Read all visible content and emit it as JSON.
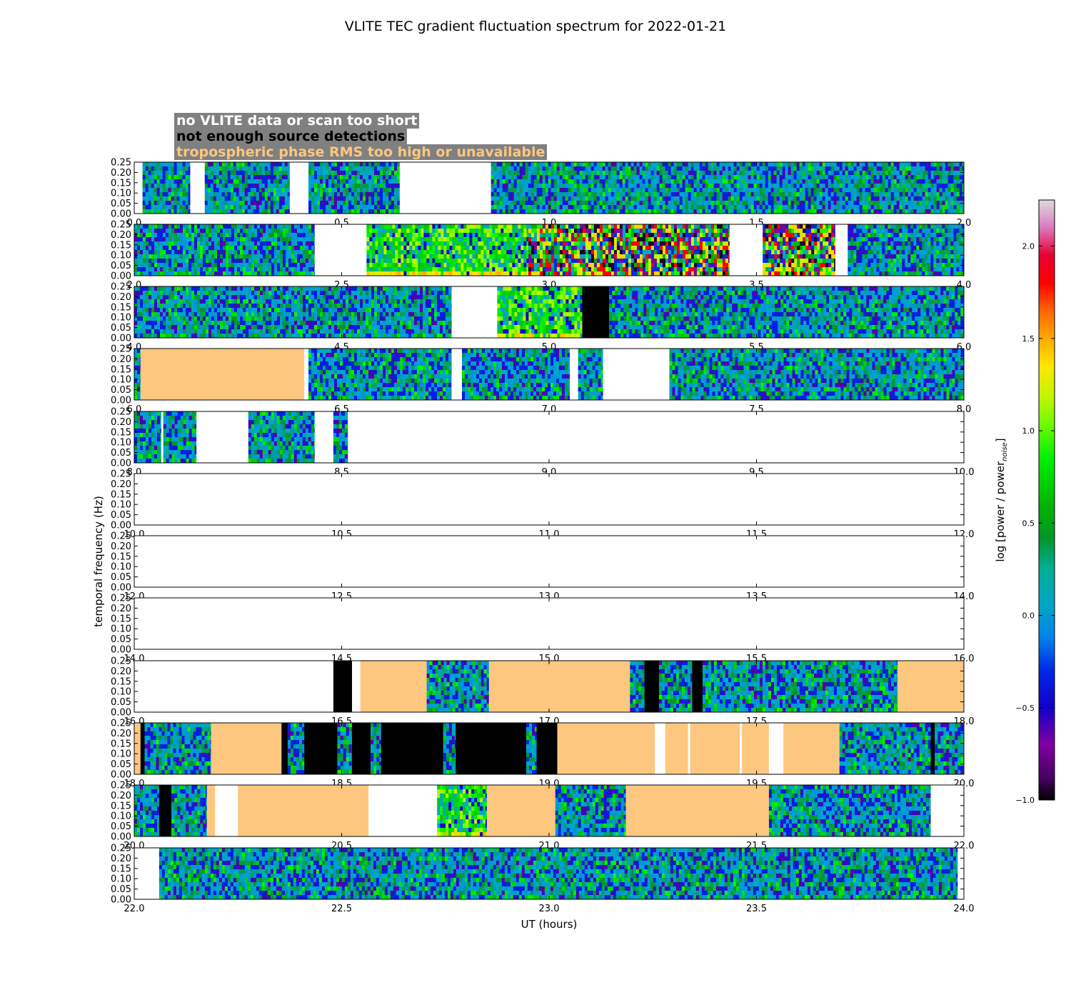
{
  "chart_data": {
    "type": "heatmap",
    "title": "VLITE TEC gradient fluctuation spectrum for 2022-01-21",
    "xlabel": "UT (hours)",
    "ylabel": "temporal frequency (Hz)",
    "colorbar_label": "log [power / power",
    "colorbar_label_sub": "noise",
    "colorbar_label_close": "]",
    "colorbar_range": [
      -1.0,
      2.25
    ],
    "colorbar_ticks": [
      "−1.0",
      "−0.5",
      "0.0",
      "0.5",
      "1.0",
      "1.5",
      "2.0"
    ],
    "colorbar_tick_values": [
      -1.0,
      -0.5,
      0.0,
      0.5,
      1.0,
      1.5,
      2.0
    ],
    "ylim": [
      0,
      0.25
    ],
    "y_ticks": [
      "0.00",
      "0.05",
      "0.10",
      "0.15",
      "0.20",
      "0.25"
    ],
    "legend": [
      {
        "label": "no VLITE data or scan too short",
        "color": "#ffffff"
      },
      {
        "label": "not enough source detections",
        "color": "#000000"
      },
      {
        "label": "tropospheric phase RMS too high or unavailable",
        "color": "#fec77f"
      }
    ],
    "panels": [
      {
        "xlim": [
          0.0,
          2.0
        ],
        "x_ticks": [
          "0.0",
          "0.5",
          "1.0",
          "1.5",
          "2.0"
        ],
        "segments": [
          {
            "start": 0.0,
            "end": 0.02,
            "state": "none"
          },
          {
            "start": 0.02,
            "end": 0.135,
            "state": "data"
          },
          {
            "start": 0.135,
            "end": 0.17,
            "state": "none"
          },
          {
            "start": 0.17,
            "end": 0.375,
            "state": "data"
          },
          {
            "start": 0.375,
            "end": 0.42,
            "state": "none"
          },
          {
            "start": 0.42,
            "end": 0.64,
            "state": "data"
          },
          {
            "start": 0.64,
            "end": 0.86,
            "state": "none"
          },
          {
            "start": 0.86,
            "end": 2.0,
            "state": "data"
          }
        ]
      },
      {
        "xlim": [
          2.0,
          4.0
        ],
        "x_ticks": [
          "2.0",
          "2.5",
          "3.0",
          "3.5",
          "4.0"
        ],
        "segments": [
          {
            "start": 2.0,
            "end": 2.435,
            "state": "data"
          },
          {
            "start": 2.435,
            "end": 2.56,
            "state": "none"
          },
          {
            "start": 2.56,
            "end": 2.95,
            "state": "active"
          },
          {
            "start": 2.95,
            "end": 3.435,
            "state": "storm"
          },
          {
            "start": 3.435,
            "end": 3.515,
            "state": "none"
          },
          {
            "start": 3.515,
            "end": 3.69,
            "state": "storm"
          },
          {
            "start": 3.69,
            "end": 3.72,
            "state": "none"
          },
          {
            "start": 3.72,
            "end": 4.0,
            "state": "data"
          }
        ]
      },
      {
        "xlim": [
          4.0,
          6.0
        ],
        "x_ticks": [
          "4.0",
          "4.5",
          "5.0",
          "5.5",
          "6.0"
        ],
        "segments": [
          {
            "start": 4.0,
            "end": 4.765,
            "state": "data"
          },
          {
            "start": 4.765,
            "end": 4.875,
            "state": "none"
          },
          {
            "start": 4.875,
            "end": 5.08,
            "state": "active"
          },
          {
            "start": 5.08,
            "end": 5.145,
            "state": "detect"
          },
          {
            "start": 5.145,
            "end": 6.0,
            "state": "data"
          }
        ]
      },
      {
        "xlim": [
          6.0,
          8.0
        ],
        "x_ticks": [
          "6.0",
          "6.5",
          "7.0",
          "7.5",
          "8.0"
        ],
        "segments": [
          {
            "start": 6.0,
            "end": 6.015,
            "state": "data"
          },
          {
            "start": 6.015,
            "end": 6.41,
            "state": "tropo"
          },
          {
            "start": 6.41,
            "end": 6.42,
            "state": "none"
          },
          {
            "start": 6.42,
            "end": 6.765,
            "state": "data"
          },
          {
            "start": 6.765,
            "end": 6.79,
            "state": "none"
          },
          {
            "start": 6.79,
            "end": 7.05,
            "state": "data"
          },
          {
            "start": 7.05,
            "end": 7.07,
            "state": "none"
          },
          {
            "start": 7.07,
            "end": 7.13,
            "state": "data"
          },
          {
            "start": 7.13,
            "end": 7.29,
            "state": "none"
          },
          {
            "start": 7.29,
            "end": 8.0,
            "state": "data"
          }
        ]
      },
      {
        "xlim": [
          8.0,
          10.0
        ],
        "x_ticks": [
          "8.0",
          "8.5",
          "9.0",
          "9.5",
          "10.0"
        ],
        "segments": [
          {
            "start": 8.0,
            "end": 8.065,
            "state": "data"
          },
          {
            "start": 8.065,
            "end": 8.07,
            "state": "none"
          },
          {
            "start": 8.07,
            "end": 8.15,
            "state": "data"
          },
          {
            "start": 8.15,
            "end": 8.275,
            "state": "none"
          },
          {
            "start": 8.275,
            "end": 8.435,
            "state": "data"
          },
          {
            "start": 8.435,
            "end": 8.48,
            "state": "none"
          },
          {
            "start": 8.48,
            "end": 8.515,
            "state": "data"
          },
          {
            "start": 8.515,
            "end": 10.0,
            "state": "none"
          }
        ]
      },
      {
        "xlim": [
          10.0,
          12.0
        ],
        "x_ticks": [
          "10.0",
          "10.5",
          "11.0",
          "11.5",
          "12.0"
        ],
        "segments": [
          {
            "start": 10.0,
            "end": 12.0,
            "state": "none"
          }
        ]
      },
      {
        "xlim": [
          12.0,
          14.0
        ],
        "x_ticks": [
          "12.0",
          "12.5",
          "13.0",
          "13.5",
          "14.0"
        ],
        "segments": [
          {
            "start": 12.0,
            "end": 14.0,
            "state": "none"
          }
        ]
      },
      {
        "xlim": [
          14.0,
          16.0
        ],
        "x_ticks": [
          "14.0",
          "14.5",
          "15.0",
          "15.5",
          "16.0"
        ],
        "segments": [
          {
            "start": 14.0,
            "end": 16.0,
            "state": "none"
          }
        ]
      },
      {
        "xlim": [
          16.0,
          18.0
        ],
        "x_ticks": [
          "16.0",
          "16.5",
          "17.0",
          "17.5",
          "18.0"
        ],
        "segments": [
          {
            "start": 16.0,
            "end": 16.48,
            "state": "none"
          },
          {
            "start": 16.48,
            "end": 16.525,
            "state": "detect"
          },
          {
            "start": 16.525,
            "end": 16.545,
            "state": "none"
          },
          {
            "start": 16.545,
            "end": 16.705,
            "state": "tropo"
          },
          {
            "start": 16.705,
            "end": 16.855,
            "state": "data"
          },
          {
            "start": 16.855,
            "end": 17.195,
            "state": "tropo"
          },
          {
            "start": 17.195,
            "end": 17.23,
            "state": "data"
          },
          {
            "start": 17.23,
            "end": 17.265,
            "state": "detect"
          },
          {
            "start": 17.265,
            "end": 17.345,
            "state": "data"
          },
          {
            "start": 17.345,
            "end": 17.37,
            "state": "detect"
          },
          {
            "start": 17.37,
            "end": 17.84,
            "state": "data"
          },
          {
            "start": 17.84,
            "end": 18.0,
            "state": "tropo"
          }
        ]
      },
      {
        "xlim": [
          18.0,
          20.0
        ],
        "x_ticks": [
          "18.0",
          "18.5",
          "19.0",
          "19.5",
          "20.0"
        ],
        "segments": [
          {
            "start": 18.0,
            "end": 18.015,
            "state": "tropo"
          },
          {
            "start": 18.015,
            "end": 18.025,
            "state": "detect"
          },
          {
            "start": 18.025,
            "end": 18.185,
            "state": "data"
          },
          {
            "start": 18.185,
            "end": 18.355,
            "state": "tropo"
          },
          {
            "start": 18.355,
            "end": 18.37,
            "state": "detect"
          },
          {
            "start": 18.37,
            "end": 18.41,
            "state": "data"
          },
          {
            "start": 18.41,
            "end": 18.49,
            "state": "detect"
          },
          {
            "start": 18.49,
            "end": 18.525,
            "state": "data"
          },
          {
            "start": 18.525,
            "end": 18.57,
            "state": "detect"
          },
          {
            "start": 18.57,
            "end": 18.595,
            "state": "data"
          },
          {
            "start": 18.595,
            "end": 18.745,
            "state": "detect"
          },
          {
            "start": 18.745,
            "end": 18.775,
            "state": "data"
          },
          {
            "start": 18.775,
            "end": 18.945,
            "state": "detect"
          },
          {
            "start": 18.945,
            "end": 18.97,
            "state": "data"
          },
          {
            "start": 18.97,
            "end": 19.02,
            "state": "detect"
          },
          {
            "start": 19.02,
            "end": 19.255,
            "state": "tropo"
          },
          {
            "start": 19.255,
            "end": 19.28,
            "state": "none"
          },
          {
            "start": 19.28,
            "end": 19.335,
            "state": "tropo"
          },
          {
            "start": 19.335,
            "end": 19.34,
            "state": "none"
          },
          {
            "start": 19.34,
            "end": 19.46,
            "state": "tropo"
          },
          {
            "start": 19.46,
            "end": 19.465,
            "state": "none"
          },
          {
            "start": 19.465,
            "end": 19.53,
            "state": "tropo"
          },
          {
            "start": 19.53,
            "end": 19.565,
            "state": "none"
          },
          {
            "start": 19.565,
            "end": 19.7,
            "state": "tropo"
          },
          {
            "start": 19.7,
            "end": 19.92,
            "state": "data"
          },
          {
            "start": 19.92,
            "end": 19.93,
            "state": "detect"
          },
          {
            "start": 19.93,
            "end": 20.0,
            "state": "data"
          }
        ]
      },
      {
        "xlim": [
          20.0,
          22.0
        ],
        "x_ticks": [
          "20.0",
          "20.5",
          "21.0",
          "21.5",
          "22.0"
        ],
        "segments": [
          {
            "start": 20.0,
            "end": 20.06,
            "state": "data"
          },
          {
            "start": 20.06,
            "end": 20.09,
            "state": "detect"
          },
          {
            "start": 20.09,
            "end": 20.175,
            "state": "data"
          },
          {
            "start": 20.175,
            "end": 20.195,
            "state": "tropo"
          },
          {
            "start": 20.195,
            "end": 20.25,
            "state": "none"
          },
          {
            "start": 20.25,
            "end": 20.565,
            "state": "tropo"
          },
          {
            "start": 20.565,
            "end": 20.73,
            "state": "none"
          },
          {
            "start": 20.73,
            "end": 20.85,
            "state": "active"
          },
          {
            "start": 20.85,
            "end": 21.015,
            "state": "tropo"
          },
          {
            "start": 21.015,
            "end": 21.185,
            "state": "data"
          },
          {
            "start": 21.185,
            "end": 21.53,
            "state": "tropo"
          },
          {
            "start": 21.53,
            "end": 21.92,
            "state": "data"
          },
          {
            "start": 21.92,
            "end": 22.0,
            "state": "none"
          }
        ]
      },
      {
        "xlim": [
          22.0,
          24.0
        ],
        "x_ticks": [
          "22.0",
          "22.5",
          "23.0",
          "23.5",
          "24.0"
        ],
        "segments": [
          {
            "start": 22.0,
            "end": 22.06,
            "state": "none"
          },
          {
            "start": 22.06,
            "end": 23.985,
            "state": "data"
          },
          {
            "start": 23.985,
            "end": 24.0,
            "state": "none"
          }
        ]
      }
    ]
  }
}
